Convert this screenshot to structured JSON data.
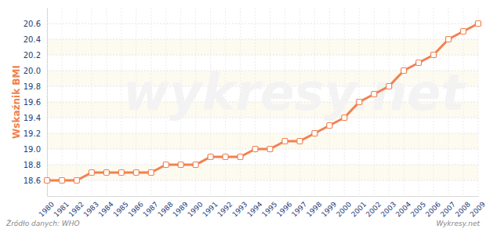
{
  "chart_data": {
    "type": "line",
    "y_label": "Wskaźnik BMI",
    "source": "Źródło danych: WHO",
    "credit": "Wykresy.net",
    "annotations": [
      "wykresy.net"
    ],
    "categories": [
      "1980",
      "1981",
      "1982",
      "1983",
      "1984",
      "1985",
      "1986",
      "1987",
      "1988",
      "1989",
      "1990",
      "1991",
      "1992",
      "1993",
      "1994",
      "1995",
      "1996",
      "1997",
      "1998",
      "1999",
      "2000",
      "2001",
      "2002",
      "2003",
      "2004",
      "2005",
      "2006",
      "2007",
      "2008",
      "2009"
    ],
    "values": [
      18.6,
      18.6,
      18.6,
      18.7,
      18.7,
      18.7,
      18.7,
      18.7,
      18.8,
      18.8,
      18.8,
      18.9,
      18.9,
      18.9,
      19.0,
      19.0,
      19.1,
      19.1,
      19.2,
      19.3,
      19.4,
      19.6,
      19.7,
      19.8,
      20.0,
      20.1,
      20.2,
      20.4,
      20.5,
      20.6
    ],
    "color": "#f2804f",
    "marker": "square",
    "grid": true,
    "ylim": [
      18.4,
      20.8
    ],
    "yticks": [
      18.6,
      18.8,
      {
        "value": 19.0,
        "label": "19.0"
      },
      19.2,
      19.4,
      19.6,
      19.8,
      {
        "value": 20.0,
        "label": "20.0"
      },
      20.2,
      20.4,
      20.6
    ]
  }
}
